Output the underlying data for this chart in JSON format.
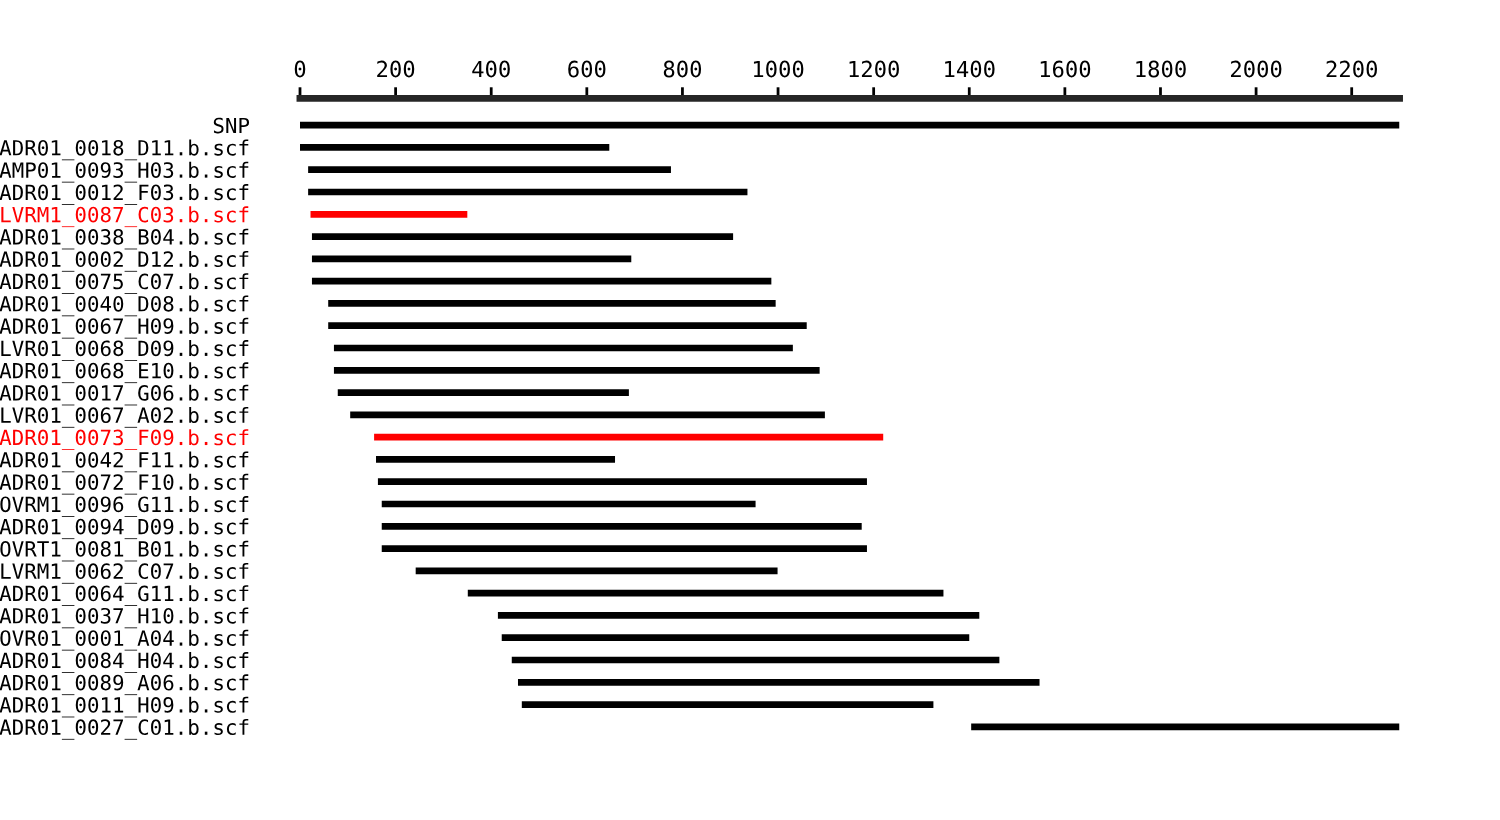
{
  "chart_data": {
    "type": "bar",
    "orientation": "horizontal",
    "categories": [
      "SNP",
      "ADR01_0018_D11.b.scf",
      "AMP01_0093_H03.b.scf",
      "ADR01_0012_F03.b.scf",
      "LVRM1_0087_C03.b.scf",
      "ADR01_0038_B04.b.scf",
      "ADR01_0002_D12.b.scf",
      "ADR01_0075_C07.b.scf",
      "ADR01_0040_D08.b.scf",
      "ADR01_0067_H09.b.scf",
      "LVR01_0068_D09.b.scf",
      "ADR01_0068_E10.b.scf",
      "ADR01_0017_G06.b.scf",
      "LVR01_0067_A02.b.scf",
      "ADR01_0073_F09.b.scf",
      "ADR01_0042_F11.b.scf",
      "ADR01_0072_F10.b.scf",
      "OVRM1_0096_G11.b.scf",
      "ADR01_0094_D09.b.scf",
      "OVRT1_0081_B01.b.scf",
      "LVRM1_0062_C07.b.scf",
      "ADR01_0064_G11.b.scf",
      "ADR01_0037_H10.b.scf",
      "OVR01_0001_A04.b.scf",
      "ADR01_0084_H04.b.scf",
      "ADR01_0089_A06.b.scf",
      "ADR01_0011_H09.b.scf",
      "ADR01_0027_C01.b.scf"
    ],
    "base": [
      0,
      0,
      17,
      17,
      22,
      25,
      25,
      25,
      59,
      59,
      71,
      71,
      79,
      105,
      155,
      159,
      163,
      171,
      171,
      171,
      242,
      351,
      414,
      422,
      443,
      456,
      464,
      1404
    ],
    "values": [
      2300,
      647,
      759,
      919,
      328,
      881,
      668,
      961,
      936,
      1001,
      960,
      1016,
      609,
      993,
      1065,
      500,
      1023,
      782,
      1004,
      1015,
      757,
      995,
      1007,
      978,
      1020,
      1091,
      861,
      896
    ],
    "colors": [
      "#000000",
      "#000000",
      "#000000",
      "#000000",
      "#ff0000",
      "#000000",
      "#000000",
      "#000000",
      "#000000",
      "#000000",
      "#000000",
      "#000000",
      "#000000",
      "#000000",
      "#ff0000",
      "#000000",
      "#000000",
      "#000000",
      "#000000",
      "#000000",
      "#000000",
      "#000000",
      "#000000",
      "#000000",
      "#000000",
      "#000000",
      "#000000",
      "#000000"
    ],
    "xlim": [
      0,
      2300
    ],
    "xticks": [
      0,
      200,
      400,
      600,
      800,
      1000,
      1200,
      1400,
      1600,
      1800,
      2000,
      2200
    ],
    "grid": false
  }
}
